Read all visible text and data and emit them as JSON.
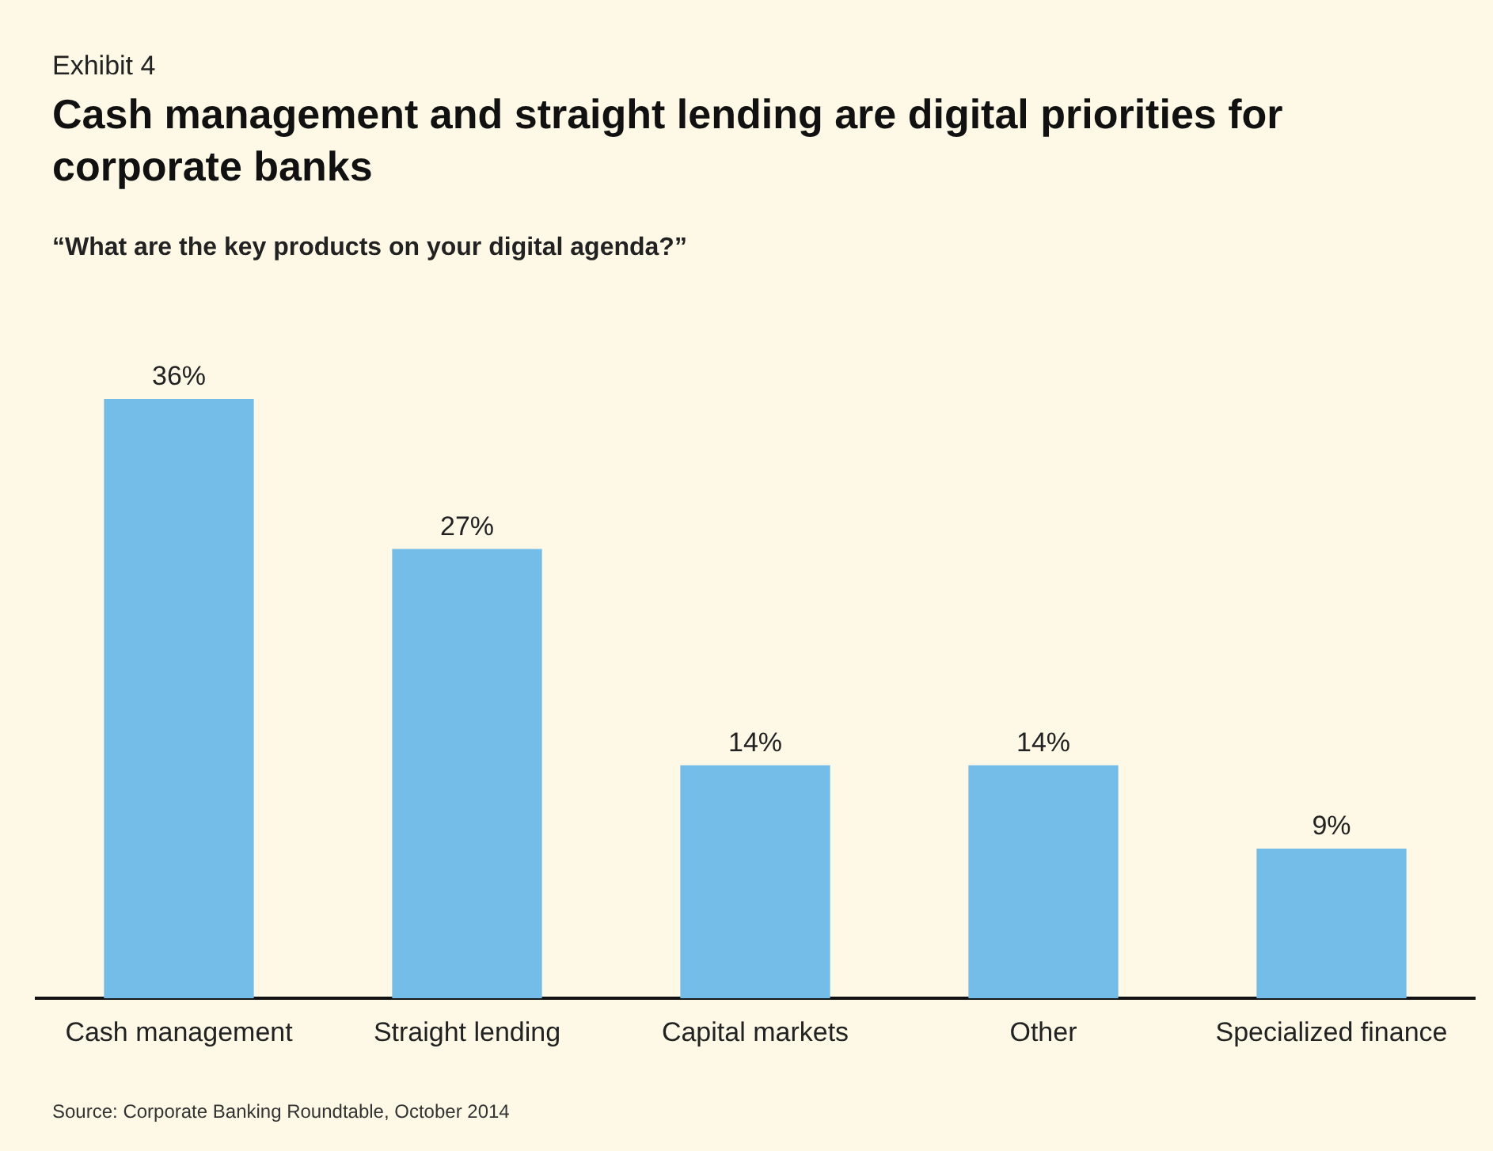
{
  "chart_data": {
    "type": "bar",
    "title": "Cash management and straight lending are digital priorities for corporate banks",
    "subtitle": "“What are the key products on your digital agenda?”",
    "annotations": [
      "Exhibit 4",
      "Source: Corporate Banking Roundtable, October 2014"
    ],
    "categories": [
      "Cash management",
      "Straight lending",
      "Capital markets",
      "Other",
      "Specialized finance"
    ],
    "values": [
      36,
      27,
      14,
      14,
      9
    ],
    "value_labels": [
      "36%",
      "27%",
      "14%",
      "14%",
      "9%"
    ],
    "color": "#74bde8",
    "grid": false,
    "legend": false
  }
}
